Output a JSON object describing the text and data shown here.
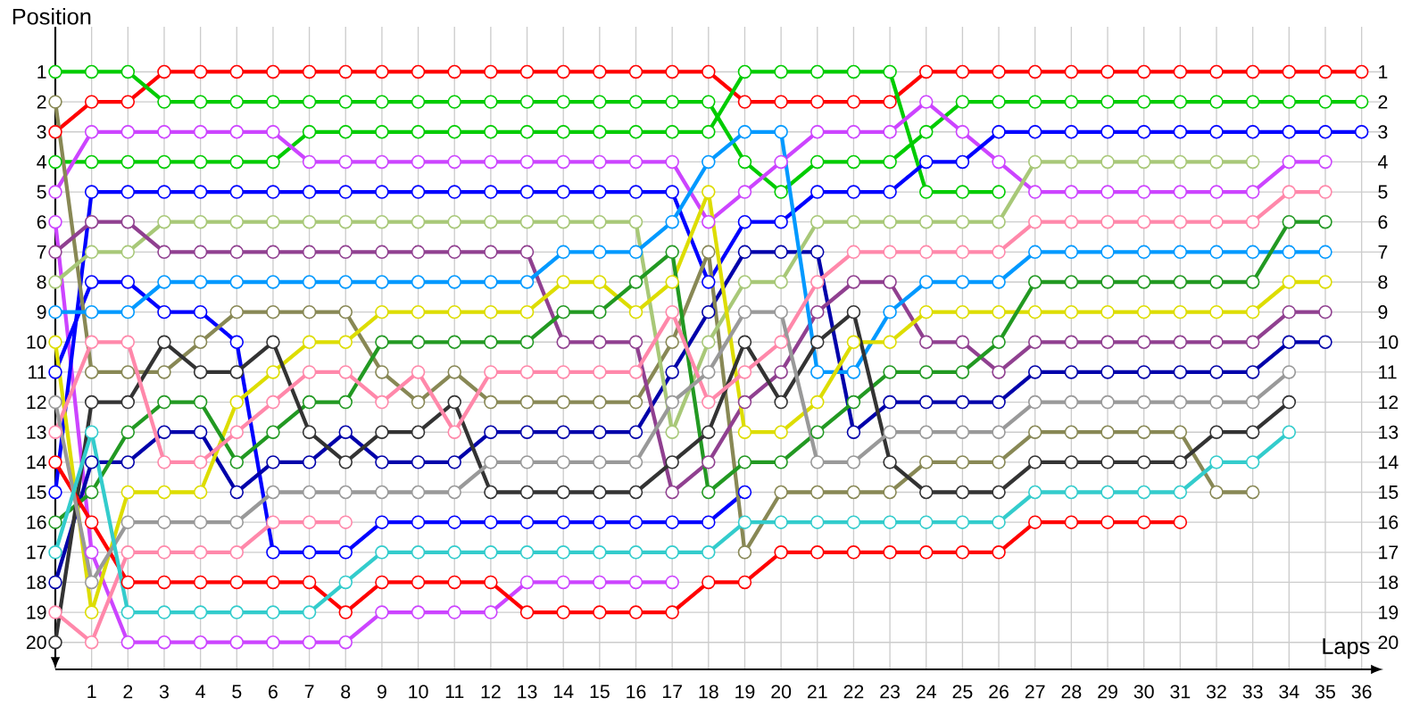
{
  "chart_data": {
    "type": "line",
    "xlabel": "Laps",
    "ylabel": "Position",
    "x": [
      0,
      1,
      2,
      3,
      4,
      5,
      6,
      7,
      8,
      9,
      10,
      11,
      12,
      13,
      14,
      15,
      16,
      17,
      18,
      19,
      20,
      21,
      22,
      23,
      24,
      25,
      26,
      27,
      28,
      29,
      30,
      31,
      32,
      33,
      34,
      35,
      36
    ],
    "xlim": [
      0,
      36.6
    ],
    "xticks": [
      1,
      2,
      3,
      4,
      5,
      6,
      7,
      8,
      9,
      10,
      11,
      12,
      13,
      14,
      15,
      16,
      17,
      18,
      19,
      20,
      21,
      22,
      23,
      24,
      25,
      26,
      27,
      28,
      29,
      30,
      31,
      32,
      33,
      34,
      35,
      36
    ],
    "ylim": [
      20.9,
      -0.5
    ],
    "yticks": [
      1,
      2,
      3,
      4,
      5,
      6,
      7,
      8,
      9,
      10,
      11,
      12,
      13,
      14,
      15,
      16,
      17,
      18,
      19,
      20
    ],
    "y2lim": [
      20.9,
      -0.5
    ],
    "y2ticks": [
      1,
      2,
      3,
      4,
      5,
      6,
      7,
      8,
      9,
      10,
      11,
      12,
      13,
      14,
      15,
      16,
      17,
      18,
      19,
      20
    ],
    "grid": true,
    "marker": "circle",
    "line_style": "solid",
    "series": [
      {
        "color": "#ff0000",
        "values": [
          3,
          2,
          2,
          1,
          1,
          1,
          1,
          1,
          1,
          1,
          1,
          1,
          1,
          1,
          1,
          1,
          1,
          1,
          1,
          2,
          2,
          2,
          2,
          2,
          1,
          1,
          1,
          1,
          1,
          1,
          1,
          1,
          1,
          1,
          1,
          1,
          1
        ]
      },
      {
        "color": "#00cc00",
        "values": [
          1,
          1,
          1,
          2,
          2,
          2,
          2,
          2,
          2,
          2,
          2,
          2,
          2,
          2,
          2,
          2,
          2,
          2,
          2,
          4,
          5,
          4,
          4,
          4,
          3,
          2,
          2,
          2,
          2,
          2,
          2,
          2,
          2,
          2,
          2,
          2,
          2
        ]
      },
      {
        "color": "#00cc00",
        "values": [
          4,
          4,
          4,
          4,
          4,
          4,
          4,
          3,
          3,
          3,
          3,
          3,
          3,
          3,
          3,
          3,
          3,
          3,
          3,
          1,
          1,
          1,
          1,
          1,
          5,
          5,
          5,
          null,
          null,
          null,
          null,
          null,
          null,
          null,
          null,
          null,
          null
        ]
      },
      {
        "color": "#cc44ff",
        "values": [
          5,
          3,
          3,
          3,
          3,
          3,
          3,
          4,
          4,
          4,
          4,
          4,
          4,
          4,
          4,
          4,
          4,
          4,
          6,
          5,
          4,
          3,
          3,
          3,
          2,
          3,
          4,
          5,
          5,
          5,
          5,
          5,
          5,
          5,
          4,
          4,
          null
        ]
      },
      {
        "color": "#cc44ff",
        "values": [
          6,
          17,
          20,
          20,
          20,
          20,
          20,
          20,
          20,
          19,
          19,
          19,
          19,
          18,
          18,
          18,
          18,
          18,
          null,
          null,
          null,
          null,
          null,
          null,
          null,
          null,
          null,
          null,
          null,
          null,
          null,
          null,
          null,
          null,
          null,
          null,
          null
        ]
      },
      {
        "color": "#0000ff",
        "values": [
          15,
          5,
          5,
          5,
          5,
          5,
          5,
          5,
          5,
          5,
          5,
          5,
          5,
          5,
          5,
          5,
          5,
          5,
          8,
          6,
          6,
          5,
          5,
          5,
          4,
          4,
          3,
          3,
          3,
          3,
          3,
          3,
          3,
          3,
          3,
          3,
          3
        ]
      },
      {
        "color": "#0000ff",
        "values": [
          11,
          8,
          8,
          9,
          9,
          10,
          17,
          17,
          17,
          16,
          16,
          16,
          16,
          16,
          16,
          16,
          16,
          16,
          16,
          15,
          null,
          null,
          null,
          null,
          null,
          null,
          null,
          null,
          null,
          null,
          null,
          null,
          null,
          null,
          null,
          null,
          null
        ]
      },
      {
        "color": "#0000aa",
        "values": [
          18,
          14,
          14,
          13,
          13,
          15,
          14,
          14,
          13,
          14,
          14,
          14,
          13,
          13,
          13,
          13,
          13,
          11,
          9,
          7,
          7,
          7,
          13,
          12,
          12,
          12,
          12,
          11,
          11,
          11,
          11,
          11,
          11,
          11,
          10,
          10,
          null
        ]
      },
      {
        "color": "#888855",
        "values": [
          2,
          11,
          11,
          11,
          10,
          9,
          9,
          9,
          9,
          11,
          12,
          11,
          12,
          12,
          12,
          12,
          12,
          10,
          7,
          17,
          15,
          15,
          15,
          15,
          14,
          14,
          14,
          13,
          13,
          13,
          13,
          13,
          15,
          15,
          null,
          null,
          null
        ]
      },
      {
        "color": "#a8c878",
        "values": [
          8,
          7,
          7,
          6,
          6,
          6,
          6,
          6,
          6,
          6,
          6,
          6,
          6,
          6,
          6,
          6,
          6,
          13,
          10,
          8,
          8,
          6,
          6,
          6,
          6,
          6,
          6,
          4,
          4,
          4,
          4,
          4,
          4,
          4,
          null,
          null,
          null
        ]
      },
      {
        "color": "#904090",
        "values": [
          7,
          6,
          6,
          7,
          7,
          7,
          7,
          7,
          7,
          7,
          7,
          7,
          7,
          7,
          10,
          10,
          10,
          15,
          14,
          12,
          11,
          9,
          8,
          8,
          10,
          10,
          11,
          10,
          10,
          10,
          10,
          10,
          10,
          10,
          9,
          9,
          null
        ]
      },
      {
        "color": "#0099ff",
        "values": [
          9,
          9,
          9,
          8,
          8,
          8,
          8,
          8,
          8,
          8,
          8,
          8,
          8,
          8,
          7,
          7,
          7,
          6,
          4,
          3,
          3,
          11,
          11,
          9,
          8,
          8,
          8,
          7,
          7,
          7,
          7,
          7,
          7,
          7,
          7,
          7,
          null
        ]
      },
      {
        "color": "#dddd00",
        "values": [
          10,
          19,
          15,
          15,
          15,
          12,
          11,
          10,
          10,
          9,
          9,
          9,
          9,
          9,
          8,
          8,
          9,
          8,
          5,
          13,
          13,
          12,
          10,
          10,
          9,
          9,
          9,
          9,
          9,
          9,
          9,
          9,
          9,
          9,
          8,
          8,
          null
        ]
      },
      {
        "color": "#229922",
        "values": [
          16,
          15,
          13,
          12,
          12,
          14,
          13,
          12,
          12,
          10,
          10,
          10,
          10,
          10,
          9,
          9,
          8,
          7,
          15,
          14,
          14,
          13,
          12,
          11,
          11,
          11,
          10,
          8,
          8,
          8,
          8,
          8,
          8,
          8,
          6,
          6,
          null
        ]
      },
      {
        "color": "#333333",
        "values": [
          20,
          12,
          12,
          10,
          11,
          11,
          10,
          13,
          14,
          13,
          13,
          12,
          15,
          15,
          15,
          15,
          15,
          14,
          13,
          10,
          12,
          10,
          9,
          14,
          15,
          15,
          15,
          14,
          14,
          14,
          14,
          14,
          13,
          13,
          12,
          null,
          null
        ]
      },
      {
        "color": "#ff0000",
        "values": [
          14,
          16,
          18,
          18,
          18,
          18,
          18,
          18,
          19,
          18,
          18,
          18,
          18,
          19,
          19,
          19,
          19,
          19,
          18,
          18,
          17,
          17,
          17,
          17,
          17,
          17,
          17,
          16,
          16,
          16,
          16,
          16,
          null,
          null,
          null,
          null,
          null
        ]
      },
      {
        "color": "#ff88aa",
        "values": [
          13,
          10,
          10,
          14,
          14,
          13,
          12,
          11,
          11,
          12,
          11,
          13,
          11,
          11,
          11,
          11,
          11,
          9,
          12,
          11,
          10,
          8,
          7,
          7,
          7,
          7,
          7,
          6,
          6,
          6,
          6,
          6,
          6,
          6,
          5,
          5,
          null
        ]
      },
      {
        "color": "#ff88aa",
        "values": [
          19,
          20,
          17,
          17,
          17,
          17,
          16,
          16,
          16,
          null,
          null,
          null,
          null,
          null,
          null,
          null,
          null,
          null,
          null,
          null,
          null,
          null,
          null,
          null,
          null,
          null,
          null,
          null,
          null,
          null,
          null,
          null,
          null,
          null,
          null,
          null,
          null
        ]
      },
      {
        "color": "#999999",
        "values": [
          12,
          18,
          16,
          16,
          16,
          16,
          15,
          15,
          15,
          15,
          15,
          15,
          14,
          14,
          14,
          14,
          14,
          12,
          11,
          9,
          9,
          14,
          14,
          13,
          13,
          13,
          13,
          12,
          12,
          12,
          12,
          12,
          12,
          12,
          11,
          null,
          null
        ]
      },
      {
        "color": "#33cccc",
        "values": [
          17,
          13,
          19,
          19,
          19,
          19,
          19,
          19,
          18,
          17,
          17,
          17,
          17,
          17,
          17,
          17,
          17,
          17,
          17,
          16,
          16,
          16,
          16,
          16,
          16,
          16,
          16,
          15,
          15,
          15,
          15,
          15,
          14,
          14,
          13,
          null,
          null
        ]
      }
    ]
  }
}
